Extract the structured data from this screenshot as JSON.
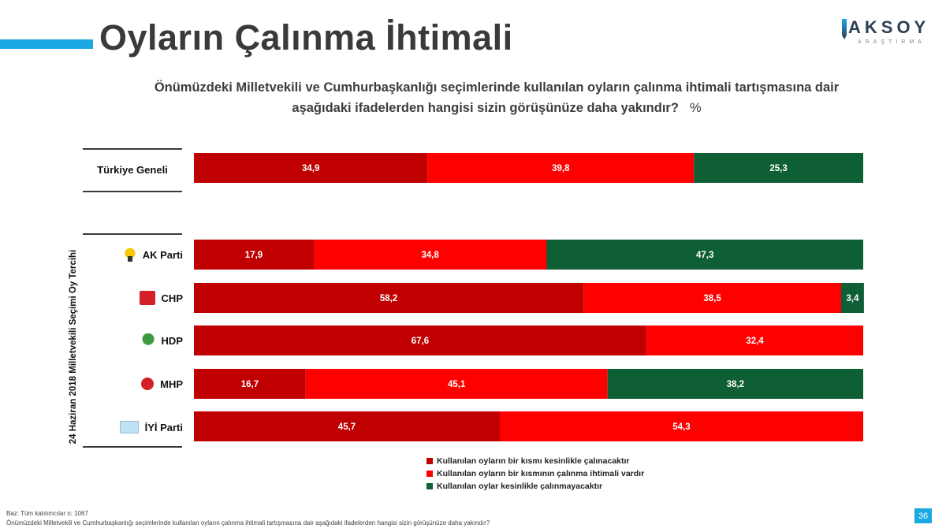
{
  "title": "Oyların Çalınma İhtimali",
  "logo": {
    "main": "AKSOY",
    "sub": "ARAŞTIRMA"
  },
  "question": {
    "line1": "Önümüzdeki Milletvekili ve Cumhurbaşkanlığı seçimlerinde kullanılan oyların çalınma ihtimali tartışmasına dair",
    "line2": "aşağıdaki ifadelerden hangisi sizin görüşünüze daha yakındır?",
    "unit": "%"
  },
  "footer": {
    "base": "Baz: Tüm katılımcılar n: 1067",
    "question": "Önümüzdeki Milletvekili ve Cumhurbaşkanlığı seçimlerinde kullanılan oyların çalınma ihtimali tartışmasına dair aşağıdaki ifadelerden hangisi sizin görüşünüze daha yakındır?"
  },
  "page_number": "36",
  "colors": {
    "series1": "#c00000",
    "series2": "#ff0000",
    "series3": "#0e5e36",
    "accent": "#1aa9e3"
  },
  "chart_data": {
    "type": "bar",
    "orientation": "horizontal",
    "stacked": true,
    "categories": [
      "Türkiye Geneli",
      "AK Parti",
      "CHP",
      "HDP",
      "MHP",
      "İYİ Parti"
    ],
    "icons": [
      "",
      "ak-parti-logo-icon",
      "chp-logo-icon",
      "hdp-logo-icon",
      "mhp-logo-icon",
      "iyi-parti-logo-icon"
    ],
    "group_label": "24 Haziran 2018 Milletvekili Seçimi Oy Tercihi",
    "series": [
      {
        "name": "Kullanılan oyların bir kısmı kesinlikle çalınacaktır",
        "color": "#c00000",
        "values": [
          34.9,
          17.9,
          58.2,
          67.6,
          16.7,
          45.7
        ]
      },
      {
        "name": "Kullanılan oyların bir kısmının çalınma ihtimali vardır",
        "color": "#ff0000",
        "values": [
          39.8,
          34.8,
          38.5,
          32.4,
          45.1,
          54.3
        ]
      },
      {
        "name": "Kullanılan oylar kesinlikle çalınmayacaktır",
        "color": "#0e5e36",
        "values": [
          25.3,
          47.3,
          3.4,
          null,
          38.2,
          null
        ]
      }
    ],
    "labels": [
      [
        "34,9",
        "39,8",
        "25,3"
      ],
      [
        "17,9",
        "34,8",
        "47,3"
      ],
      [
        "58,2",
        "38,5",
        "3,4"
      ],
      [
        "67,6",
        "32,4",
        ""
      ],
      [
        "16,7",
        "45,1",
        "38,2"
      ],
      [
        "45,7",
        "54,3",
        ""
      ]
    ],
    "xlim": [
      0,
      100
    ]
  }
}
